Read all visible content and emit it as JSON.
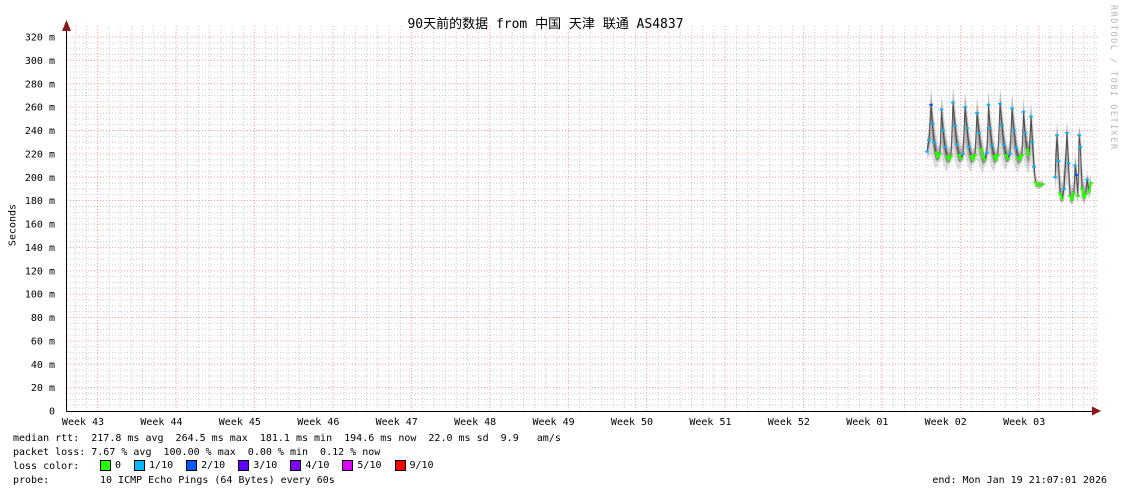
{
  "title": "90天前的数据 from 中国 天津 联通 AS4837",
  "watermark": "RRDTOOL / TOBI OETIKER",
  "end_label": "end: Mon Jan 19 21:07:01 2026",
  "legend": {
    "median_line": "median rtt:  217.8 ms avg  264.5 ms max  181.1 ms min  194.6 ms now  22.0 ms sd  9.9   am/s",
    "loss_line": "packet loss: 7.67 % avg  100.00 % max  0.00 % min  0.12 % now",
    "loss_color_label": "loss color:",
    "loss_colors": [
      {
        "label": "0",
        "color": "#26ff00"
      },
      {
        "label": "1/10",
        "color": "#00b8ff"
      },
      {
        "label": "2/10",
        "color": "#0059ff"
      },
      {
        "label": "3/10",
        "color": "#5e00ff"
      },
      {
        "label": "4/10",
        "color": "#7e00ff"
      },
      {
        "label": "5/10",
        "color": "#dd00ff"
      },
      {
        "label": "9/10",
        "color": "#ff0000"
      }
    ],
    "probe_label": "probe:",
    "probe_text": "10 ICMP Echo Pings (64 Bytes) every 60s"
  },
  "chart_data": {
    "type": "line",
    "style": "smokeping-latency",
    "title": "90天前的数据 from 中国 天津 联通 AS4837",
    "ylabel": "Seconds",
    "y_unit": "ms",
    "ylim_ms": [
      0,
      320
    ],
    "y_tick_step_ms": 20,
    "y_tick_labels": [
      "0",
      "20 m",
      "40 m",
      "60 m",
      "80 m",
      "100 m",
      "120 m",
      "140 m",
      "160 m",
      "180 m",
      "200 m",
      "220 m",
      "240 m",
      "260 m",
      "280 m",
      "300 m",
      "320 m"
    ],
    "x_tick_labels": [
      "Week 43",
      "Week 44",
      "Week 45",
      "Week 46",
      "Week 47",
      "Week 48",
      "Week 49",
      "Week 50",
      "Week 51",
      "Week 52",
      "Week 01",
      "Week 02",
      "Week 03"
    ],
    "grid": true,
    "legend_position": "bottom",
    "end_time": "Mon Jan 19 21:07:01 2026",
    "stats": {
      "median_rtt_ms": {
        "avg": 217.8,
        "max": 264.5,
        "min": 181.1,
        "now": 194.6,
        "sd": 22.0,
        "am_s": 9.9
      },
      "packet_loss_pct": {
        "avg": 7.67,
        "max": 100.0,
        "min": 0.0,
        "now": 0.12
      }
    },
    "point_format": "[x_px_from_plot_left, median_ms, smoke_low_ms, smoke_high_ms, loss_color_index]",
    "clusters": [
      [
        [
          860,
          222,
          216,
          230,
          1
        ],
        [
          862,
          232,
          218,
          246,
          1
        ],
        [
          864,
          262,
          220,
          277,
          2
        ],
        [
          865.5,
          246,
          216,
          266,
          1
        ],
        [
          867,
          230,
          210,
          252,
          1
        ],
        [
          869,
          221,
          207,
          240,
          0
        ],
        [
          871,
          217,
          212,
          226,
          0
        ],
        [
          873,
          220,
          213,
          232,
          0
        ],
        [
          874.5,
          258,
          218,
          272,
          1
        ],
        [
          876,
          240,
          212,
          260,
          1
        ],
        [
          878,
          226,
          206,
          246,
          1
        ],
        [
          880,
          218,
          205,
          234,
          0
        ],
        [
          882,
          215,
          211,
          224,
          0
        ],
        [
          884,
          218,
          212,
          230,
          0
        ],
        [
          886,
          264,
          220,
          278,
          1
        ],
        [
          888,
          244,
          214,
          262,
          1
        ],
        [
          890,
          228,
          208,
          248,
          1
        ],
        [
          892,
          219,
          206,
          236,
          0
        ],
        [
          894,
          216,
          212,
          226,
          0
        ],
        [
          896,
          220,
          213,
          234,
          1
        ],
        [
          898,
          260,
          218,
          274,
          1
        ],
        [
          900,
          242,
          212,
          260,
          1
        ],
        [
          902,
          226,
          206,
          244,
          1
        ],
        [
          904,
          218,
          205,
          232,
          0
        ],
        [
          906,
          215,
          211,
          224,
          0
        ],
        [
          908,
          219,
          212,
          230,
          0
        ],
        [
          910,
          255,
          216,
          270,
          1
        ],
        [
          912,
          238,
          210,
          256,
          1
        ],
        [
          914,
          224,
          206,
          242,
          0
        ],
        [
          916,
          217,
          204,
          230,
          0
        ],
        [
          918,
          215,
          210,
          222,
          0
        ],
        [
          920,
          221,
          212,
          238,
          1
        ],
        [
          921.5,
          262,
          218,
          276,
          1
        ],
        [
          923,
          242,
          212,
          260,
          1
        ],
        [
          925,
          227,
          207,
          246,
          1
        ],
        [
          927,
          218,
          205,
          232,
          0
        ],
        [
          929,
          215,
          211,
          224,
          0
        ],
        [
          931,
          219,
          213,
          232,
          0
        ],
        [
          933,
          263,
          220,
          277,
          1
        ],
        [
          935,
          244,
          214,
          262,
          1
        ],
        [
          937,
          228,
          208,
          246,
          1
        ],
        [
          939,
          219,
          206,
          234,
          0
        ],
        [
          941,
          216,
          211,
          226,
          0
        ],
        [
          943,
          220,
          213,
          234,
          1
        ],
        [
          945,
          259,
          217,
          272,
          1
        ],
        [
          947,
          240,
          211,
          258,
          1
        ],
        [
          949,
          225,
          206,
          242,
          1
        ],
        [
          951,
          217,
          204,
          230,
          0
        ],
        [
          953,
          215,
          210,
          224,
          0
        ],
        [
          955,
          219,
          212,
          232,
          0
        ],
        [
          956.5,
          256,
          216,
          270,
          1
        ],
        [
          958,
          238,
          210,
          254,
          1
        ],
        [
          960,
          224,
          205,
          240,
          0
        ],
        [
          962,
          219,
          204,
          232,
          0
        ],
        [
          964,
          252,
          214,
          266,
          1
        ],
        [
          965.5,
          230,
          205,
          252,
          1
        ],
        [
          967,
          209,
          196,
          232,
          1
        ],
        [
          968.5,
          196,
          191,
          204,
          0
        ],
        [
          970,
          193,
          190,
          198,
          0
        ],
        [
          973,
          193,
          190,
          197,
          0
        ],
        [
          976,
          194,
          191,
          198,
          0
        ]
      ],
      [
        [
          988,
          200,
          188,
          228,
          1
        ],
        [
          990,
          236,
          198,
          246,
          1
        ],
        [
          991.5,
          214,
          186,
          236,
          1
        ],
        [
          993,
          186,
          179,
          206,
          0
        ],
        [
          995,
          182,
          177,
          194,
          0
        ],
        [
          997,
          190,
          180,
          214,
          1
        ],
        [
          1000,
          238,
          196,
          248,
          1
        ],
        [
          1001.5,
          212,
          185,
          234,
          1
        ],
        [
          1003,
          184,
          177,
          200,
          0
        ],
        [
          1005,
          181,
          176,
          192,
          0
        ],
        [
          1007,
          186,
          179,
          200,
          0
        ],
        [
          1008,
          210,
          188,
          222,
          1
        ],
        [
          1009.5,
          202,
          184,
          214,
          2
        ],
        [
          1011,
          184,
          177,
          198,
          0
        ],
        [
          1012,
          236,
          194,
          244,
          1
        ],
        [
          1013.5,
          226,
          190,
          238,
          1
        ],
        [
          1015,
          190,
          180,
          212,
          0
        ],
        [
          1017,
          183,
          177,
          196,
          0
        ],
        [
          1019,
          186,
          180,
          198,
          0
        ],
        [
          1020,
          198,
          186,
          206,
          1
        ],
        [
          1022,
          188,
          181,
          199,
          0
        ],
        [
          1024,
          195,
          186,
          202,
          0
        ]
      ]
    ]
  }
}
